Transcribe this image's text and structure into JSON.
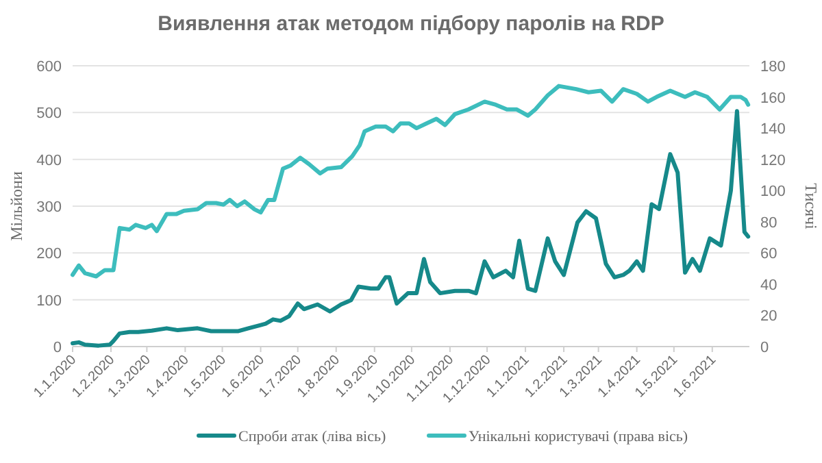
{
  "chart_data": {
    "type": "line",
    "title": "Виявлення атак методом підбору паролів на RDP",
    "ylabel": "Мільйони",
    "y2label": "Тисячі",
    "xlim": [
      "2020-01-01",
      "2021-07-01"
    ],
    "xticks": [
      {
        "value": "2020-01-01",
        "label": "1.1.2020"
      },
      {
        "value": "2020-02-01",
        "label": "1.2.2020"
      },
      {
        "value": "2020-03-01",
        "label": "1.3.2020"
      },
      {
        "value": "2020-04-01",
        "label": "1.4.2020"
      },
      {
        "value": "2020-05-01",
        "label": "1.5.2020"
      },
      {
        "value": "2020-06-01",
        "label": "1.6.2020"
      },
      {
        "value": "2020-07-01",
        "label": "1.7.2020"
      },
      {
        "value": "2020-08-01",
        "label": "1.8.2020"
      },
      {
        "value": "2020-09-01",
        "label": "1.9.2020"
      },
      {
        "value": "2020-10-01",
        "label": "1.10.2020"
      },
      {
        "value": "2020-11-01",
        "label": "1.11.2020"
      },
      {
        "value": "2020-12-01",
        "label": "1.12.2020"
      },
      {
        "value": "2021-01-01",
        "label": "1.1.2021"
      },
      {
        "value": "2021-02-01",
        "label": "1.2.2021"
      },
      {
        "value": "2021-03-01",
        "label": "1.3.2021"
      },
      {
        "value": "2021-04-01",
        "label": "1.4.2021"
      },
      {
        "value": "2021-05-01",
        "label": "1.5.2021"
      },
      {
        "value": "2021-06-01",
        "label": "1.6.2021"
      }
    ],
    "ylim": [
      0,
      600
    ],
    "yticks": [
      0,
      100,
      200,
      300,
      400,
      500,
      600
    ],
    "y2lim": [
      0,
      180
    ],
    "y2ticks": [
      0,
      20,
      40,
      60,
      80,
      100,
      120,
      140,
      160,
      180
    ],
    "grid": "y",
    "legend": "bottom",
    "line_style": "solid",
    "marker": "none",
    "series": [
      {
        "name": "Спроби атак (ліва вісь)",
        "color": "#16898a",
        "x": [
          "2020-01-01",
          "2020-01-06",
          "2020-01-11",
          "2020-01-22",
          "2020-01-31",
          "2020-02-03",
          "2020-02-08",
          "2020-02-16",
          "2020-02-23",
          "2020-03-05",
          "2020-03-17",
          "2020-03-26",
          "2020-04-11",
          "2020-04-22",
          "2020-05-03",
          "2020-05-14",
          "2020-05-22",
          "2020-06-01",
          "2020-06-05",
          "2020-06-11",
          "2020-06-17",
          "2020-06-24",
          "2020-07-01",
          "2020-07-06",
          "2020-07-17",
          "2020-07-27",
          "2020-08-05",
          "2020-08-13",
          "2020-08-19",
          "2020-08-29",
          "2020-09-04",
          "2020-09-10",
          "2020-09-13",
          "2020-09-19",
          "2020-09-28",
          "2020-10-05",
          "2020-10-11",
          "2020-10-16",
          "2020-10-24",
          "2020-11-05",
          "2020-11-16",
          "2020-11-22",
          "2020-11-29",
          "2020-12-06",
          "2020-12-16",
          "2020-12-22",
          "2020-12-27",
          "2021-01-03",
          "2021-01-09",
          "2021-01-19",
          "2021-01-25",
          "2021-02-01",
          "2021-02-12",
          "2021-02-19",
          "2021-02-27",
          "2021-03-07",
          "2021-03-14",
          "2021-03-21",
          "2021-03-26",
          "2021-04-01",
          "2021-04-06",
          "2021-04-13",
          "2021-04-19",
          "2021-04-28",
          "2021-05-04",
          "2021-05-10",
          "2021-05-16",
          "2021-05-22",
          "2021-05-30",
          "2021-06-08",
          "2021-06-16",
          "2021-06-21",
          "2021-06-27",
          "2021-06-30"
        ],
        "values": [
          7,
          9,
          4,
          2,
          4,
          12,
          28,
          31,
          31,
          34,
          39,
          35,
          39,
          33,
          33,
          33,
          39,
          46,
          49,
          58,
          55,
          65,
          92,
          80,
          90,
          75,
          90,
          99,
          128,
          124,
          124,
          148,
          148,
          92,
          114,
          114,
          187,
          138,
          114,
          119,
          119,
          114,
          182,
          148,
          162,
          148,
          226,
          124,
          119,
          231,
          182,
          153,
          265,
          289,
          274,
          177,
          148,
          153,
          162,
          182,
          162,
          304,
          294,
          411,
          372,
          158,
          187,
          162,
          231,
          216,
          333,
          503,
          245,
          235
        ]
      },
      {
        "name": "Унікальні користувачі (права вісь)",
        "color": "#3dbdbd",
        "axis": "y2",
        "x": [
          "2020-01-01",
          "2020-01-06",
          "2020-01-11",
          "2020-01-20",
          "2020-01-27",
          "2020-02-03",
          "2020-02-08",
          "2020-02-16",
          "2020-02-21",
          "2020-02-29",
          "2020-03-05",
          "2020-03-09",
          "2020-03-17",
          "2020-03-25",
          "2020-03-31",
          "2020-04-11",
          "2020-04-18",
          "2020-04-26",
          "2020-05-02",
          "2020-05-07",
          "2020-05-13",
          "2020-05-19",
          "2020-05-27",
          "2020-06-01",
          "2020-06-07",
          "2020-06-12",
          "2020-06-19",
          "2020-06-25",
          "2020-07-03",
          "2020-07-10",
          "2020-07-19",
          "2020-07-25",
          "2020-08-05",
          "2020-08-14",
          "2020-08-20",
          "2020-08-24",
          "2020-09-02",
          "2020-09-10",
          "2020-09-16",
          "2020-09-22",
          "2020-09-29",
          "2020-10-05",
          "2020-10-13",
          "2020-10-21",
          "2020-10-28",
          "2020-11-05",
          "2020-11-16",
          "2020-11-29",
          "2020-12-08",
          "2020-12-17",
          "2020-12-25",
          "2021-01-03",
          "2021-01-09",
          "2021-01-19",
          "2021-01-28",
          "2021-02-11",
          "2021-02-21",
          "2021-03-03",
          "2021-03-12",
          "2021-03-21",
          "2021-04-01",
          "2021-04-10",
          "2021-04-17",
          "2021-04-28",
          "2021-05-10",
          "2021-05-18",
          "2021-05-28",
          "2021-06-07",
          "2021-06-16",
          "2021-06-24",
          "2021-06-28",
          "2021-06-30"
        ],
        "values": [
          46,
          52,
          47,
          45,
          49,
          49,
          76,
          75,
          78,
          76,
          78,
          74,
          85,
          85,
          87,
          88,
          92,
          92,
          91,
          94,
          90,
          93,
          88,
          86,
          94,
          94,
          114,
          116,
          121,
          117,
          111,
          114,
          115,
          122,
          129,
          138,
          141,
          141,
          138,
          143,
          143,
          140,
          143,
          146,
          142,
          149,
          152,
          157,
          155,
          152,
          152,
          148,
          152,
          161,
          167,
          165,
          163,
          164,
          157,
          165,
          162,
          157,
          160,
          164,
          160,
          163,
          160,
          152,
          160,
          160,
          158,
          155
        ]
      }
    ]
  }
}
